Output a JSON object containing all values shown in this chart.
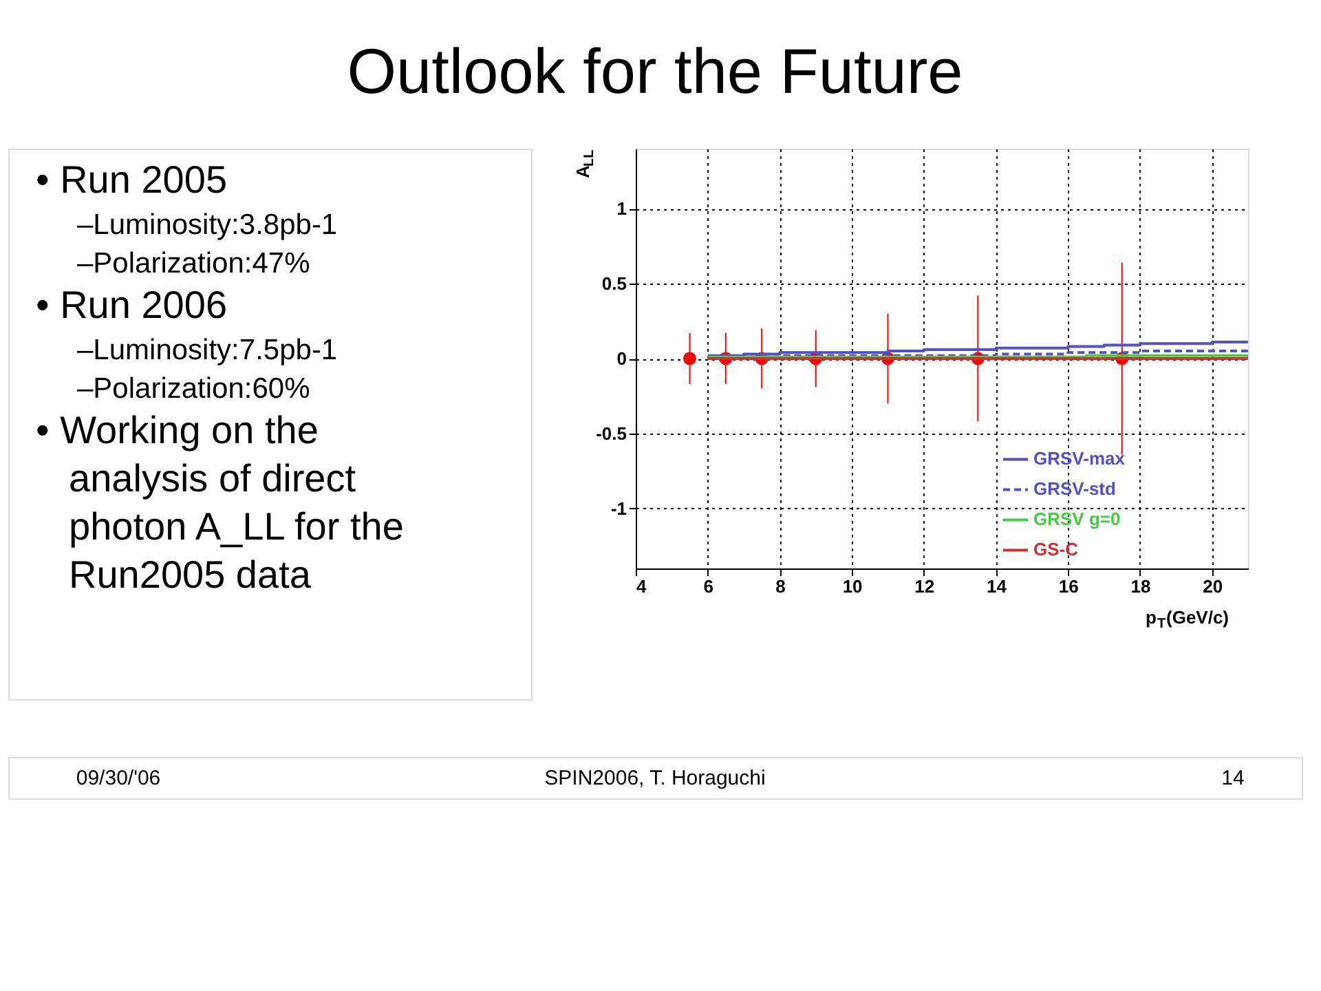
{
  "chart_data": {
    "type": "scatter",
    "title": "Outlook for the Future",
    "xlabel": "p$_{T}$(GeV/c)",
    "ylabel": "A$_{LL}$",
    "x": [
      5.5,
      6.5,
      7.5,
      9,
      11,
      13.5,
      17.5
    ],
    "series": [
      {
        "color": "#ff0000",
        "values": [
          0,
          0,
          0,
          0,
          0,
          0,
          0
        ],
        "errors": [
          0.17,
          0.17,
          0.2,
          0.19,
          0.3,
          0.42,
          0.64
        ],
        "marker": "circle"
      },
      {
        "name": "GRSV-max",
        "type": "step",
        "color": "#5050d0",
        "x": [
          6,
          7,
          8,
          10,
          11,
          12,
          14,
          16,
          17,
          18,
          20,
          21
        ],
        "values": [
          0.02,
          0.03,
          0.04,
          0.04,
          0.05,
          0.06,
          0.07,
          0.08,
          0.09,
          0.1,
          0.11,
          0.11
        ],
        "line_style": "solid"
      },
      {
        "name": "GRSV-std",
        "type": "step",
        "color": "#5050d0",
        "x": [
          6,
          8,
          11,
          14,
          16,
          18,
          21
        ],
        "values": [
          0.01,
          0.02,
          0.02,
          0.03,
          0.04,
          0.05,
          0.06
        ],
        "line_style": "dashed"
      },
      {
        "name": "GRSV g=0",
        "type": "step",
        "color": "#40d040",
        "x": [
          6,
          10,
          16.5,
          21
        ],
        "values": [
          0.01,
          0.01,
          0.02,
          0.02
        ],
        "line_style": "solid"
      },
      {
        "name": "GS-C",
        "type": "step",
        "color": "#d03030",
        "x": [
          6,
          21
        ],
        "values": [
          0,
          0
        ],
        "line_style": "solid"
      }
    ],
    "xlim": [
      4,
      21
    ],
    "ylim": [
      -1.4,
      1.4
    ],
    "xticks": [
      4,
      6,
      8,
      10,
      12,
      14,
      16,
      18,
      20
    ],
    "yticks": [
      -1,
      -0.5,
      0,
      0.5,
      1
    ],
    "grid": true,
    "legend": "bottom right",
    "annotations": [
      "• Run 2005",
      "–Luminosity:3.8pb-1",
      "–Polarization:47%",
      "• Run 2006",
      "–Luminosity:7.5pb-1",
      "–Polarization:60%",
      "• Working on the analysis of direct photon A_LL for the Run2005 data",
      "09/30/'06",
      "SPIN2006, T. Horaguchi",
      "14"
    ]
  }
}
